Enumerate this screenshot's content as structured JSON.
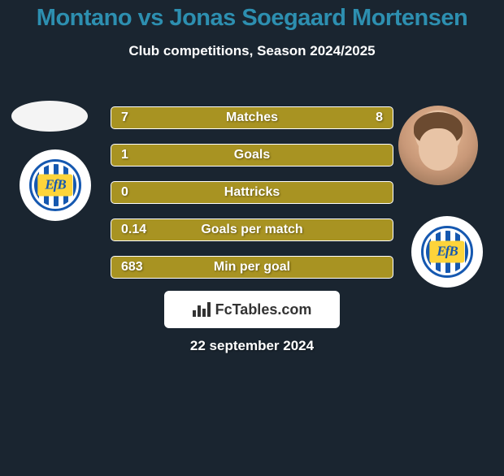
{
  "title": "Montano vs Jonas Soegaard Mortensen",
  "title_color": "#2d8fb0",
  "title_fontsize": 29,
  "subtitle": "Club competitions, Season 2024/2025",
  "subtitle_fontsize": 17,
  "background_color": "#1a2530",
  "bar_color": "#a89322",
  "bar_border_color": "#ffffff",
  "bar_fontsize": 16,
  "bars": [
    {
      "label": "Matches",
      "left": "7",
      "right": "8"
    },
    {
      "label": "Goals",
      "left": "1",
      "right": ""
    },
    {
      "label": "Hattricks",
      "left": "0",
      "right": ""
    },
    {
      "label": "Goals per match",
      "left": "0.14",
      "right": ""
    },
    {
      "label": "Min per goal",
      "left": "683",
      "right": ""
    }
  ],
  "brand": "FcTables.com",
  "date": "22 september 2024",
  "date_fontsize": 17,
  "team_logo_text": "EfB",
  "logo_stripe_color": "#1558b0",
  "logo_badge_color": "#fdd43a"
}
